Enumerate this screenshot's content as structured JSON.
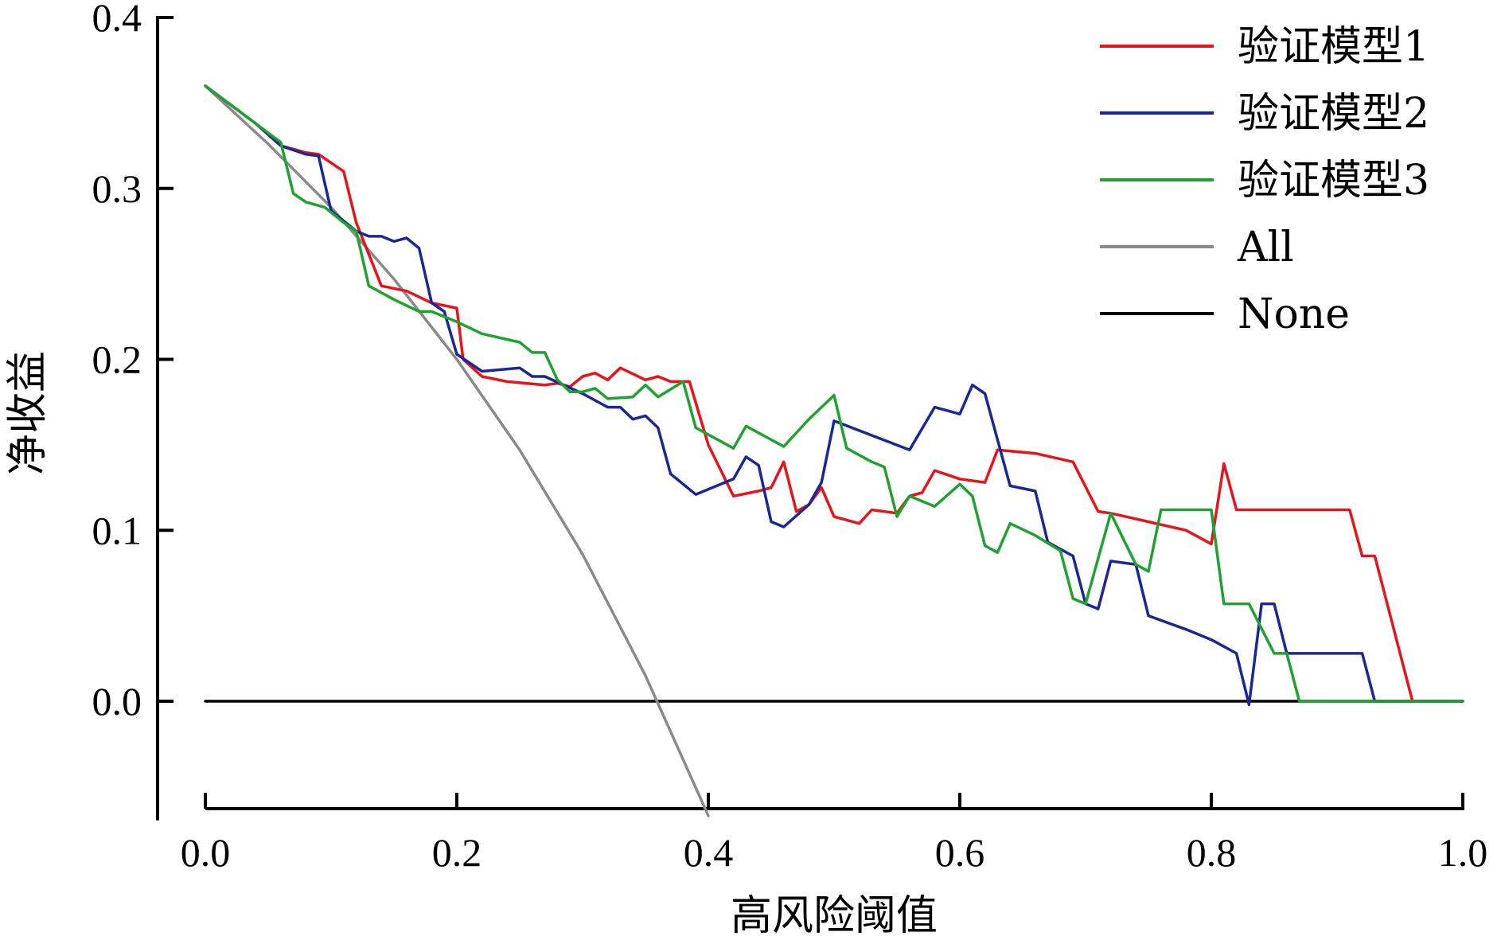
{
  "chart_data": {
    "type": "line",
    "title": "",
    "xlabel": "高风险阈值",
    "ylabel": "净收益",
    "xlim": [
      0.0,
      1.0
    ],
    "ylim": [
      -0.065,
      0.4
    ],
    "xticks": [
      "0.0",
      "0.2",
      "0.4",
      "0.6",
      "0.8",
      "1.0"
    ],
    "yticks": [
      "0.0",
      "0.1",
      "0.2",
      "0.3",
      "0.4"
    ],
    "grid": false,
    "legend_position": "top-right",
    "series": [
      {
        "name": "验证模型1",
        "color": "#e8141c",
        "points": [
          [
            0.0,
            0.36
          ],
          [
            0.04,
            0.338
          ],
          [
            0.06,
            0.325
          ],
          [
            0.08,
            0.321
          ],
          [
            0.09,
            0.32
          ],
          [
            0.11,
            0.31
          ],
          [
            0.12,
            0.28
          ],
          [
            0.14,
            0.243
          ],
          [
            0.16,
            0.24
          ],
          [
            0.18,
            0.233
          ],
          [
            0.2,
            0.23
          ],
          [
            0.205,
            0.2
          ],
          [
            0.22,
            0.19
          ],
          [
            0.24,
            0.187
          ],
          [
            0.27,
            0.185
          ],
          [
            0.28,
            0.186
          ],
          [
            0.29,
            0.184
          ],
          [
            0.3,
            0.19
          ],
          [
            0.31,
            0.192
          ],
          [
            0.32,
            0.188
          ],
          [
            0.33,
            0.195
          ],
          [
            0.35,
            0.188
          ],
          [
            0.36,
            0.19
          ],
          [
            0.37,
            0.187
          ],
          [
            0.385,
            0.187
          ],
          [
            0.4,
            0.15
          ],
          [
            0.42,
            0.12
          ],
          [
            0.44,
            0.123
          ],
          [
            0.45,
            0.125
          ],
          [
            0.46,
            0.14
          ],
          [
            0.47,
            0.111
          ],
          [
            0.48,
            0.115
          ],
          [
            0.49,
            0.125
          ],
          [
            0.5,
            0.108
          ],
          [
            0.52,
            0.104
          ],
          [
            0.53,
            0.112
          ],
          [
            0.55,
            0.11
          ],
          [
            0.56,
            0.12
          ],
          [
            0.57,
            0.122
          ],
          [
            0.58,
            0.135
          ],
          [
            0.6,
            0.13
          ],
          [
            0.62,
            0.128
          ],
          [
            0.63,
            0.147
          ],
          [
            0.66,
            0.145
          ],
          [
            0.69,
            0.14
          ],
          [
            0.71,
            0.111
          ],
          [
            0.72,
            0.11
          ],
          [
            0.75,
            0.105
          ],
          [
            0.78,
            0.1
          ],
          [
            0.8,
            0.092
          ],
          [
            0.81,
            0.139
          ],
          [
            0.82,
            0.112
          ],
          [
            0.91,
            0.112
          ],
          [
            0.92,
            0.085
          ],
          [
            0.93,
            0.085
          ],
          [
            0.96,
            0.0
          ],
          [
            1.0,
            0.0
          ]
        ]
      },
      {
        "name": "验证模型2",
        "color": "#1a2896",
        "points": [
          [
            0.0,
            0.36
          ],
          [
            0.04,
            0.338
          ],
          [
            0.06,
            0.325
          ],
          [
            0.08,
            0.32
          ],
          [
            0.09,
            0.319
          ],
          [
            0.1,
            0.287
          ],
          [
            0.12,
            0.275
          ],
          [
            0.13,
            0.272
          ],
          [
            0.14,
            0.272
          ],
          [
            0.15,
            0.269
          ],
          [
            0.16,
            0.271
          ],
          [
            0.17,
            0.265
          ],
          [
            0.18,
            0.233
          ],
          [
            0.19,
            0.228
          ],
          [
            0.2,
            0.203
          ],
          [
            0.22,
            0.193
          ],
          [
            0.25,
            0.195
          ],
          [
            0.26,
            0.19
          ],
          [
            0.27,
            0.19
          ],
          [
            0.3,
            0.18
          ],
          [
            0.32,
            0.172
          ],
          [
            0.33,
            0.172
          ],
          [
            0.34,
            0.165
          ],
          [
            0.35,
            0.167
          ],
          [
            0.36,
            0.16
          ],
          [
            0.37,
            0.133
          ],
          [
            0.39,
            0.121
          ],
          [
            0.41,
            0.127
          ],
          [
            0.42,
            0.13
          ],
          [
            0.43,
            0.143
          ],
          [
            0.44,
            0.138
          ],
          [
            0.45,
            0.105
          ],
          [
            0.46,
            0.102
          ],
          [
            0.48,
            0.115
          ],
          [
            0.49,
            0.128
          ],
          [
            0.5,
            0.164
          ],
          [
            0.56,
            0.147
          ],
          [
            0.58,
            0.172
          ],
          [
            0.6,
            0.168
          ],
          [
            0.61,
            0.185
          ],
          [
            0.62,
            0.18
          ],
          [
            0.64,
            0.126
          ],
          [
            0.66,
            0.123
          ],
          [
            0.67,
            0.093
          ],
          [
            0.69,
            0.085
          ],
          [
            0.7,
            0.057
          ],
          [
            0.71,
            0.054
          ],
          [
            0.72,
            0.082
          ],
          [
            0.74,
            0.08
          ],
          [
            0.75,
            0.05
          ],
          [
            0.78,
            0.042
          ],
          [
            0.8,
            0.036
          ],
          [
            0.82,
            0.028
          ],
          [
            0.83,
            -0.002
          ],
          [
            0.84,
            0.057
          ],
          [
            0.85,
            0.057
          ],
          [
            0.86,
            0.028
          ],
          [
            0.92,
            0.028
          ],
          [
            0.93,
            0.0
          ],
          [
            1.0,
            0.0
          ]
        ]
      },
      {
        "name": "验证模型3",
        "color": "#21a132",
        "points": [
          [
            0.0,
            0.36
          ],
          [
            0.04,
            0.338
          ],
          [
            0.06,
            0.327
          ],
          [
            0.07,
            0.297
          ],
          [
            0.08,
            0.292
          ],
          [
            0.095,
            0.289
          ],
          [
            0.11,
            0.28
          ],
          [
            0.12,
            0.275
          ],
          [
            0.13,
            0.243
          ],
          [
            0.15,
            0.235
          ],
          [
            0.17,
            0.228
          ],
          [
            0.18,
            0.228
          ],
          [
            0.2,
            0.222
          ],
          [
            0.22,
            0.215
          ],
          [
            0.25,
            0.21
          ],
          [
            0.26,
            0.204
          ],
          [
            0.27,
            0.204
          ],
          [
            0.28,
            0.188
          ],
          [
            0.29,
            0.181
          ],
          [
            0.3,
            0.181
          ],
          [
            0.31,
            0.183
          ],
          [
            0.32,
            0.177
          ],
          [
            0.34,
            0.178
          ],
          [
            0.35,
            0.185
          ],
          [
            0.36,
            0.178
          ],
          [
            0.38,
            0.187
          ],
          [
            0.39,
            0.16
          ],
          [
            0.42,
            0.148
          ],
          [
            0.43,
            0.161
          ],
          [
            0.46,
            0.149
          ],
          [
            0.48,
            0.165
          ],
          [
            0.5,
            0.179
          ],
          [
            0.51,
            0.148
          ],
          [
            0.53,
            0.14
          ],
          [
            0.54,
            0.137
          ],
          [
            0.55,
            0.108
          ],
          [
            0.56,
            0.12
          ],
          [
            0.58,
            0.114
          ],
          [
            0.6,
            0.127
          ],
          [
            0.61,
            0.12
          ],
          [
            0.62,
            0.091
          ],
          [
            0.63,
            0.087
          ],
          [
            0.64,
            0.104
          ],
          [
            0.66,
            0.097
          ],
          [
            0.68,
            0.088
          ],
          [
            0.69,
            0.06
          ],
          [
            0.7,
            0.057
          ],
          [
            0.72,
            0.11
          ],
          [
            0.74,
            0.08
          ],
          [
            0.75,
            0.076
          ],
          [
            0.76,
            0.112
          ],
          [
            0.8,
            0.112
          ],
          [
            0.81,
            0.057
          ],
          [
            0.83,
            0.057
          ],
          [
            0.85,
            0.028
          ],
          [
            0.86,
            0.028
          ],
          [
            0.87,
            0.0
          ],
          [
            1.0,
            0.0
          ]
        ]
      },
      {
        "name": "All",
        "color": "#8a8a8a",
        "points": [
          [
            0.0,
            0.36
          ],
          [
            0.05,
            0.326
          ],
          [
            0.1,
            0.289
          ],
          [
            0.15,
            0.247
          ],
          [
            0.2,
            0.2
          ],
          [
            0.25,
            0.147
          ],
          [
            0.3,
            0.086
          ],
          [
            0.35,
            0.015
          ],
          [
            0.4,
            -0.067
          ]
        ]
      },
      {
        "name": "None",
        "color": "#000000",
        "points": [
          [
            0.0,
            0.0
          ],
          [
            1.0,
            0.0
          ]
        ]
      }
    ]
  }
}
